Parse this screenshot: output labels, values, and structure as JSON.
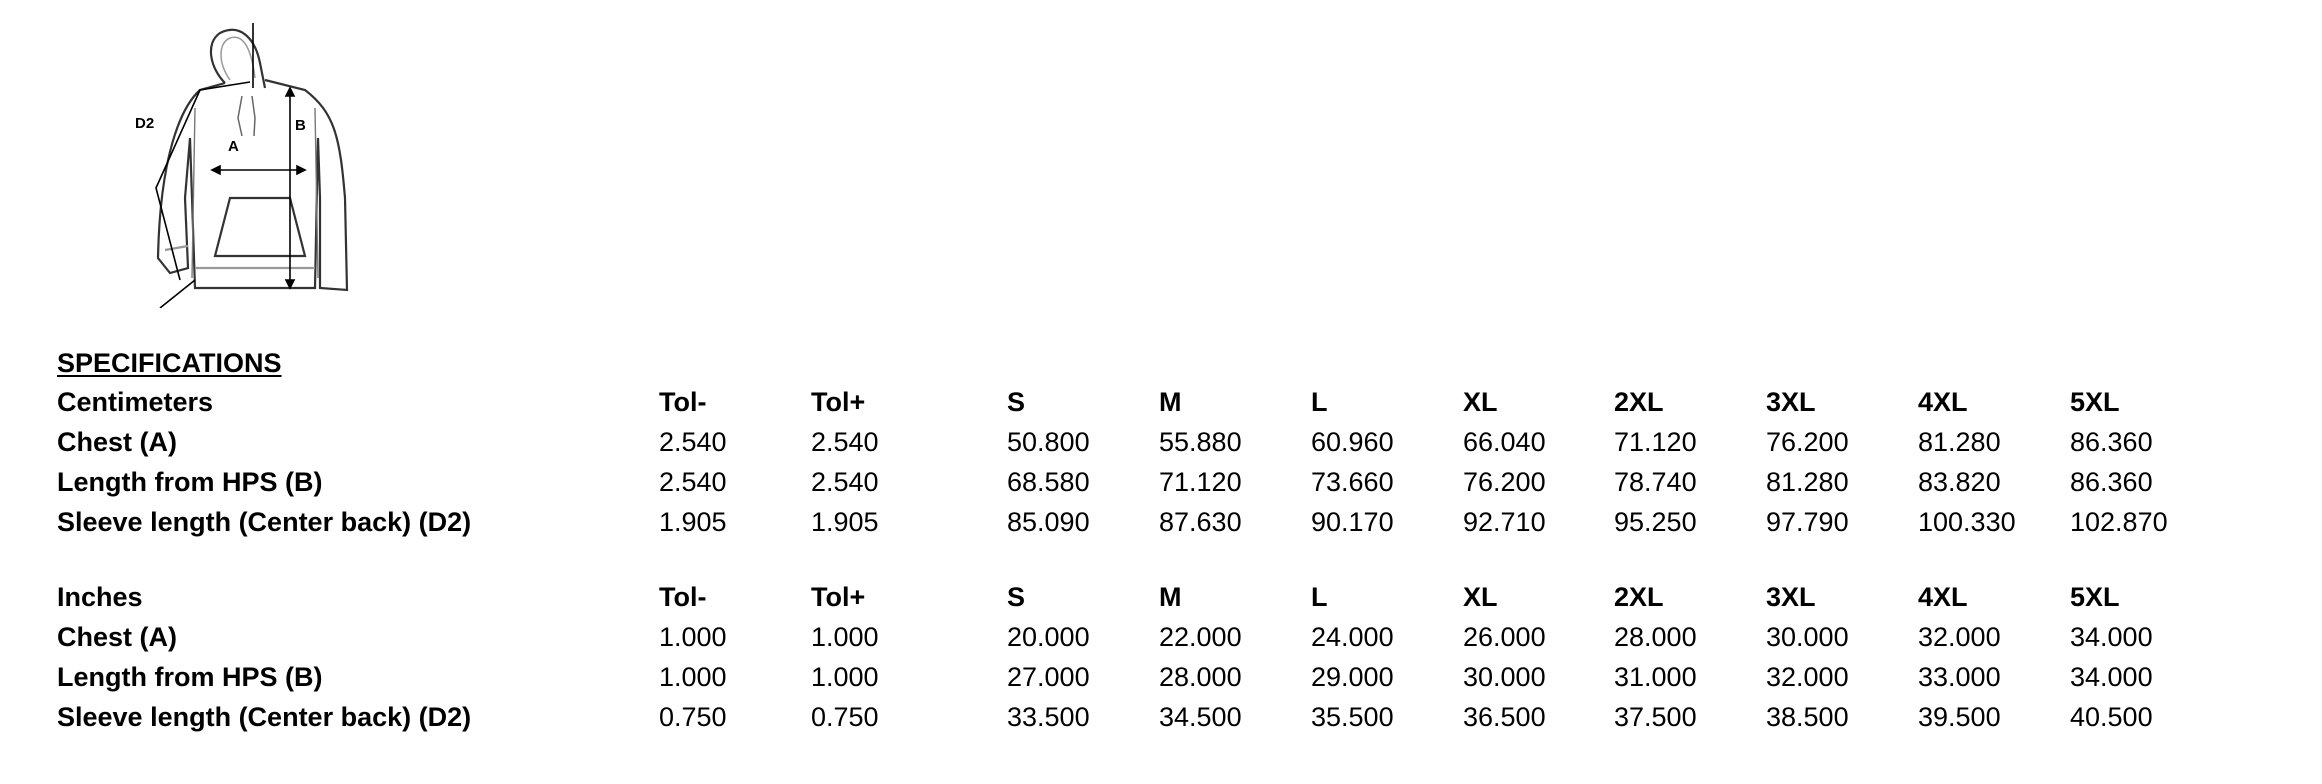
{
  "diagram": {
    "labels": {
      "d2": "D2",
      "a": "A",
      "b": "B"
    }
  },
  "specifications_title": "SPECIFICATIONS",
  "columns": [
    "Tol-",
    "Tol+",
    "S",
    "M",
    "L",
    "XL",
    "2XL",
    "3XL",
    "4XL",
    "5XL"
  ],
  "sections": [
    {
      "unit": "Centimeters",
      "rows": [
        {
          "label": "Chest (A)",
          "values": [
            "2.540",
            "2.540",
            "50.800",
            "55.880",
            "60.960",
            "66.040",
            "71.120",
            "76.200",
            "81.280",
            "86.360"
          ]
        },
        {
          "label": "Length from HPS (B)",
          "values": [
            "2.540",
            "2.540",
            "68.580",
            "71.120",
            "73.660",
            "76.200",
            "78.740",
            "81.280",
            "83.820",
            "86.360"
          ]
        },
        {
          "label": "Sleeve length (Center back) (D2)",
          "values": [
            "1.905",
            "1.905",
            "85.090",
            "87.630",
            "90.170",
            "92.710",
            "95.250",
            "97.790",
            "100.330",
            "102.870"
          ]
        }
      ]
    },
    {
      "unit": "Inches",
      "rows": [
        {
          "label": "Chest (A)",
          "values": [
            "1.000",
            "1.000",
            "20.000",
            "22.000",
            "24.000",
            "26.000",
            "28.000",
            "30.000",
            "32.000",
            "34.000"
          ]
        },
        {
          "label": "Length from HPS (B)",
          "values": [
            "1.000",
            "1.000",
            "27.000",
            "28.000",
            "29.000",
            "30.000",
            "31.000",
            "32.000",
            "33.000",
            "34.000"
          ]
        },
        {
          "label": "Sleeve length (Center back) (D2)",
          "values": [
            "0.750",
            "0.750",
            "33.500",
            "34.500",
            "35.500",
            "36.500",
            "37.500",
            "38.500",
            "39.500",
            "40.500"
          ]
        }
      ]
    }
  ]
}
